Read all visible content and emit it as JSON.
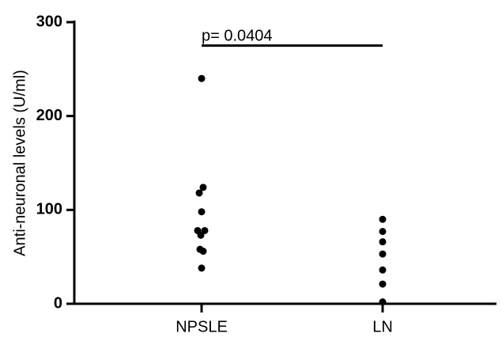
{
  "chart_data": {
    "type": "scatter",
    "title": "",
    "xlabel": "",
    "ylabel": "Anti-neuronal levels (U/ml)",
    "categories": [
      "NPSLE",
      "LN"
    ],
    "ylim": [
      0,
      300
    ],
    "yticks": [
      "0",
      "100",
      "200",
      "300"
    ],
    "grid": false,
    "marker_color": "#000000",
    "series": [
      {
        "category": "NPSLE",
        "points": [
          {
            "offset": 0,
            "y": 240
          },
          {
            "offset": 0.02,
            "y": 124
          },
          {
            "offset": -0.03,
            "y": 118
          },
          {
            "offset": 0,
            "y": 98
          },
          {
            "offset": -0.05,
            "y": 78
          },
          {
            "offset": 0.04,
            "y": 78
          },
          {
            "offset": -0.01,
            "y": 73
          },
          {
            "offset": -0.02,
            "y": 58
          },
          {
            "offset": 0.02,
            "y": 56
          },
          {
            "offset": 0,
            "y": 38
          }
        ]
      },
      {
        "category": "LN",
        "points": [
          {
            "offset": 0,
            "y": 90
          },
          {
            "offset": 0,
            "y": 77
          },
          {
            "offset": 0,
            "y": 66
          },
          {
            "offset": 0,
            "y": 53
          },
          {
            "offset": 0,
            "y": 36
          },
          {
            "offset": 0,
            "y": 21
          },
          {
            "offset": 0,
            "y": 2
          }
        ]
      }
    ],
    "annotation": {
      "text": "p= 0.0404",
      "from": "NPSLE",
      "to": "LN",
      "y": 275
    }
  }
}
